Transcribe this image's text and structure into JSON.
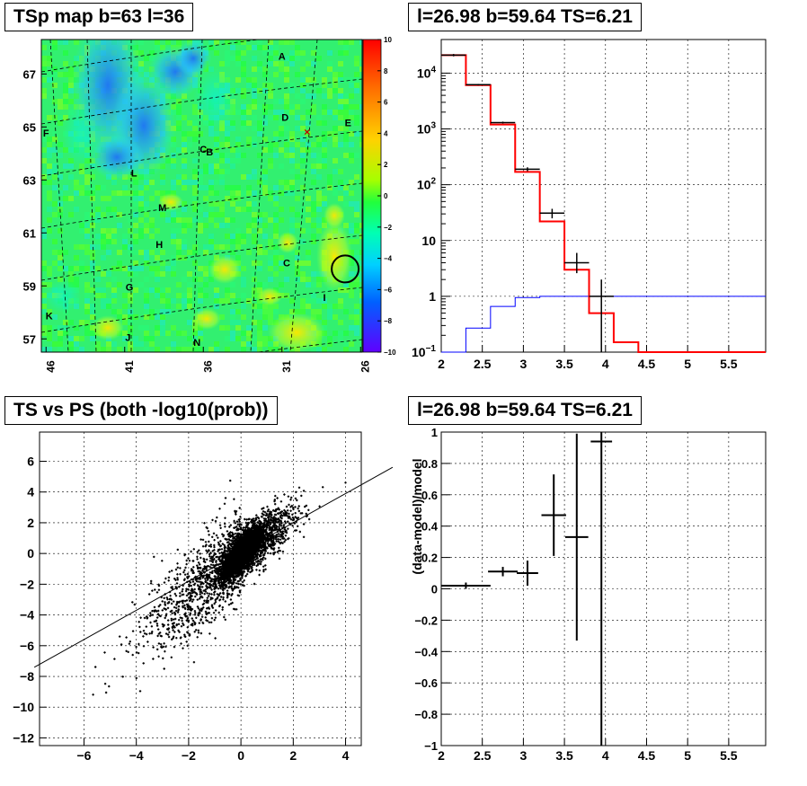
{
  "titles": {
    "map": "TSp map b=63 l=36",
    "spectrum": "l=26.98 b=59.64 TS=6.21",
    "scatter": "TS vs PS (both -log10(prob))",
    "residual": "l=26.98 b=59.64 TS=6.21"
  },
  "chart_data": [
    {
      "type": "heatmap",
      "title": "TSp map b=63 l=36",
      "x_ticks": [
        "46",
        "41",
        "36",
        "31",
        "26"
      ],
      "y_ticks": [
        "67",
        "65",
        "63",
        "61",
        "59",
        "57"
      ],
      "colorbar_ticks": [
        "10",
        "8",
        "6",
        "4",
        "2",
        "0",
        "-2",
        "-4",
        "-6",
        "-8",
        "-10"
      ],
      "zlim": [
        -10,
        10
      ],
      "source_labels": [
        {
          "label": "A",
          "l": 31.0,
          "b": 67.7
        },
        {
          "label": "D",
          "l": 30.8,
          "b": 65.4
        },
        {
          "label": "E",
          "l": 26.8,
          "b": 65.2
        },
        {
          "label": "F",
          "l": 46.0,
          "b": 64.8
        },
        {
          "label": "C",
          "l": 36.0,
          "b": 64.2
        },
        {
          "label": "B",
          "l": 35.6,
          "b": 64.1
        },
        {
          "label": "L",
          "l": 40.4,
          "b": 63.3
        },
        {
          "label": "M",
          "l": 38.6,
          "b": 62.0
        },
        {
          "label": "H",
          "l": 38.8,
          "b": 60.6
        },
        {
          "label": "C",
          "l": 30.7,
          "b": 59.9
        },
        {
          "label": "I",
          "l": 28.3,
          "b": 58.6
        },
        {
          "label": "G",
          "l": 40.7,
          "b": 59.0
        },
        {
          "label": "K",
          "l": 45.8,
          "b": 57.9
        },
        {
          "label": "J",
          "l": 40.8,
          "b": 57.1
        },
        {
          "label": "N",
          "l": 36.4,
          "b": 56.9
        }
      ],
      "marked_source": {
        "l": 26.98,
        "b": 59.64
      }
    },
    {
      "type": "line",
      "title": "l=26.98 b=59.64 TS=6.21",
      "y_scale": "log",
      "xlim": [
        2,
        5.95
      ],
      "ylim": [
        0.1,
        40000
      ],
      "x_ticks": [
        "2",
        "2.5",
        "3",
        "3.5",
        "4",
        "4.5",
        "5",
        "5.5"
      ],
      "y_ticks": [
        "10^-1",
        "1",
        "10",
        "10^2",
        "10^3",
        "10^4"
      ],
      "bin_edges": [
        2.0,
        2.3,
        2.6,
        2.9,
        3.2,
        3.5,
        3.8,
        4.1,
        4.4,
        4.7,
        5.0,
        5.3,
        5.6,
        5.95
      ],
      "series": [
        {
          "color": "#000000",
          "kind": "data_points",
          "values": [
            21000,
            6200,
            1300,
            190,
            31,
            4.0,
            1.0
          ],
          "err_low": [
            20000,
            6000,
            1250,
            175,
            25,
            2.6,
            0.1
          ],
          "err_high": [
            22000,
            6400,
            1350,
            205,
            37,
            6.0,
            2.0
          ]
        },
        {
          "color": "#ff0000",
          "kind": "model_total",
          "values": [
            21000,
            6100,
            1200,
            170,
            22,
            3.0,
            0.5,
            0.15,
            0.1,
            0.1,
            0.1,
            0.1,
            0.1
          ]
        },
        {
          "color": "#0000ff",
          "kind": "model_component",
          "values": [
            0.1,
            0.27,
            0.66,
            0.95,
            1.0,
            1.0,
            1.0,
            1.0,
            1.0,
            1.0,
            1.0,
            1.0,
            1.0
          ]
        }
      ]
    },
    {
      "type": "scatter",
      "title": "TS vs PS (both -log10(prob))",
      "xlim": [
        -7.7,
        4.6
      ],
      "ylim": [
        -12.5,
        7.9
      ],
      "x_ticks": [
        "-6",
        "-4",
        "-2",
        "0",
        "2",
        "4"
      ],
      "y_ticks": [
        "6",
        "4",
        "2",
        "0",
        "-2",
        "-4",
        "-6",
        "-8",
        "-10",
        "-12"
      ],
      "fit_line": {
        "slope": 0.95,
        "intercept": 0.1
      },
      "point_count": 5000
    },
    {
      "type": "scatter",
      "title": "l=26.98 b=59.64 TS=6.21",
      "ylabel": "(data-model)/model",
      "xlim": [
        2,
        5.95
      ],
      "ylim": [
        -1,
        1
      ],
      "x_ticks": [
        "2",
        "2.5",
        "3",
        "3.5",
        "4",
        "4.5",
        "5",
        "5.5"
      ],
      "y_ticks": [
        "1",
        "0.8",
        "0.6",
        "0.4",
        "0.2",
        "0",
        "-0.2",
        "-0.4",
        "-0.6",
        "-0.8",
        "-1"
      ],
      "points": [
        {
          "x": 2.3,
          "xerr": 0.3,
          "y": 0.02,
          "ylo": 0.0,
          "yhi": 0.04
        },
        {
          "x": 2.75,
          "xerr": 0.18,
          "y": 0.11,
          "ylo": 0.08,
          "yhi": 0.14
        },
        {
          "x": 3.05,
          "xerr": 0.13,
          "y": 0.1,
          "ylo": 0.02,
          "yhi": 0.18
        },
        {
          "x": 3.37,
          "xerr": 0.15,
          "y": 0.47,
          "ylo": 0.21,
          "yhi": 0.73
        },
        {
          "x": 3.65,
          "xerr": 0.14,
          "y": 0.33,
          "ylo": -0.33,
          "yhi": 0.99
        },
        {
          "x": 3.95,
          "xerr": 0.13,
          "y": 0.94,
          "ylo": -1.0,
          "yhi": 1.0
        }
      ]
    }
  ]
}
